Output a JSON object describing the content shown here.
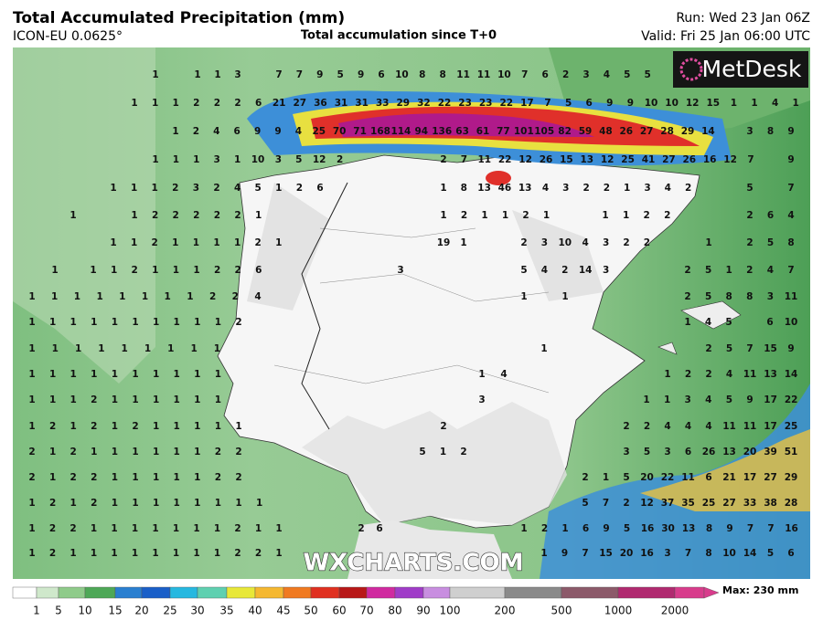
{
  "header": {
    "title": "Total Accumulated Precipitation (mm)",
    "model": "ICON-EU 0.0625°",
    "subtitle": "Total accumulation since T+0",
    "run": "Run: Wed 23 Jan 06Z",
    "valid": "Valid: Fri 25 Jan 06:00 UTC"
  },
  "logo": "MetDesk",
  "watermark": "WXCHARTS.COM",
  "grid": {
    "rows": [
      [
        1,
        1,
        1,
        3,
        7,
        7,
        9,
        5,
        9,
        6,
        10,
        8,
        8,
        11,
        11,
        10,
        7,
        6,
        2,
        3,
        4,
        5,
        5
      ],
      [
        1,
        1,
        1,
        2,
        2,
        2,
        6,
        21,
        27,
        36,
        31,
        31,
        33,
        29,
        32,
        22,
        23,
        23,
        22,
        17,
        7,
        5,
        6,
        9,
        9,
        10,
        10,
        12,
        15,
        1,
        1,
        4,
        1
      ],
      [
        1,
        2,
        4,
        6,
        9,
        9,
        4,
        25,
        70,
        71,
        168,
        114,
        94,
        136,
        63,
        61,
        77,
        101,
        105,
        82,
        59,
        48,
        26,
        27,
        28,
        29,
        14,
        3,
        8,
        9
      ],
      [
        1,
        1,
        1,
        3,
        1,
        10,
        3,
        5,
        12,
        2,
        2,
        7,
        11,
        22,
        12,
        26,
        15,
        13,
        12,
        25,
        41,
        27,
        26,
        16,
        12,
        7,
        9
      ],
      [
        1,
        1,
        1,
        2,
        3,
        2,
        4,
        5,
        1,
        2,
        6,
        1,
        8,
        13,
        46,
        13,
        4,
        3,
        2,
        2,
        1,
        3,
        4,
        2,
        5,
        7
      ],
      [
        1,
        1,
        2,
        2,
        2,
        2,
        2,
        1,
        1,
        2,
        1,
        1,
        2,
        1,
        1,
        1,
        2,
        2,
        2,
        6,
        4
      ],
      [
        1,
        1,
        2,
        1,
        1,
        1,
        1,
        2,
        1,
        19,
        1,
        2,
        3,
        10,
        4,
        3,
        2,
        2,
        1,
        2,
        5,
        8
      ],
      [
        1,
        1,
        1,
        2,
        1,
        1,
        1,
        2,
        2,
        6,
        3,
        5,
        4,
        2,
        14,
        3,
        2,
        5,
        1,
        2,
        4,
        7
      ],
      [
        1,
        1,
        1,
        1,
        1,
        1,
        1,
        1,
        2,
        2,
        4,
        1,
        1,
        2,
        5,
        8,
        8,
        3,
        11
      ],
      [
        1,
        1,
        1,
        1,
        1,
        1,
        1,
        1,
        1,
        1,
        2,
        1,
        4,
        5,
        6,
        10
      ],
      [
        1,
        1,
        1,
        1,
        1,
        1,
        1,
        1,
        1,
        1,
        2,
        5,
        7,
        15,
        9
      ],
      [
        1,
        1,
        1,
        1,
        1,
        1,
        1,
        1,
        1,
        1,
        1,
        4,
        1,
        2,
        2,
        4,
        11,
        13,
        14
      ],
      [
        1,
        1,
        1,
        2,
        1,
        1,
        1,
        1,
        1,
        1,
        3,
        1,
        1,
        3,
        4,
        5,
        9,
        17,
        22
      ],
      [
        1,
        2,
        1,
        2,
        1,
        2,
        1,
        1,
        1,
        1,
        1,
        2,
        2,
        2,
        4,
        4,
        4,
        11,
        11,
        17,
        25
      ],
      [
        2,
        1,
        2,
        1,
        1,
        1,
        1,
        1,
        1,
        2,
        2,
        5,
        1,
        2,
        3,
        5,
        3,
        6,
        26,
        13,
        20,
        39,
        51
      ],
      [
        2,
        1,
        2,
        2,
        1,
        1,
        1,
        1,
        1,
        2,
        2,
        2,
        1,
        5,
        20,
        22,
        11,
        6,
        21,
        17,
        27,
        29
      ],
      [
        1,
        2,
        1,
        2,
        1,
        1,
        1,
        1,
        1,
        1,
        1,
        1,
        5,
        7,
        2,
        12,
        37,
        35,
        25,
        27,
        33,
        38,
        28
      ],
      [
        1,
        2,
        2,
        1,
        1,
        1,
        1,
        1,
        1,
        1,
        2,
        1,
        1,
        2,
        6,
        1,
        2,
        1,
        6,
        9,
        5,
        16,
        30,
        13,
        8,
        9,
        7,
        7,
        16
      ],
      [
        1,
        2,
        1,
        1,
        1,
        1,
        1,
        1,
        1,
        1,
        2,
        2,
        1,
        1,
        9,
        7,
        15,
        20,
        16,
        3,
        7,
        8,
        10,
        14,
        5,
        6
      ]
    ]
  },
  "colorbar": {
    "ticks": [
      1,
      5,
      10,
      15,
      20,
      25,
      30,
      35,
      40,
      45,
      50,
      60,
      70,
      80,
      90,
      100,
      200,
      500,
      1000,
      2000
    ],
    "max_label": "Max: 230 mm"
  }
}
